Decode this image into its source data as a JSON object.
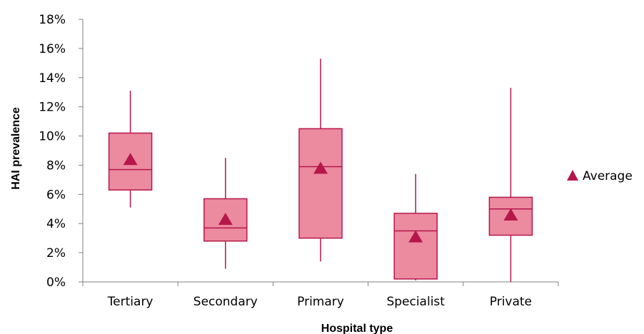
{
  "chart_data": {
    "type": "boxplot",
    "title": "",
    "xlabel": "Hospital type",
    "ylabel": "HAI prevalence",
    "ylim": [
      0,
      18
    ],
    "y_ticks": [
      0,
      2,
      4,
      6,
      8,
      10,
      12,
      14,
      16,
      18
    ],
    "y_tick_format": "percent",
    "categories": [
      "Tertiary",
      "Secondary",
      "Primary",
      "Specialist",
      "Private"
    ],
    "boxes": [
      {
        "category": "Tertiary",
        "min": 5.1,
        "q1": 6.3,
        "median": 7.7,
        "q3": 10.2,
        "max": 13.1,
        "average": 8.4
      },
      {
        "category": "Secondary",
        "min": 0.9,
        "q1": 2.8,
        "median": 3.7,
        "q3": 5.7,
        "max": 8.5,
        "average": 4.3
      },
      {
        "category": "Primary",
        "min": 1.4,
        "q1": 3.0,
        "median": 7.9,
        "q3": 10.5,
        "max": 15.3,
        "average": 7.8
      },
      {
        "category": "Specialist",
        "min": 0.1,
        "q1": 0.2,
        "median": 3.5,
        "q3": 4.7,
        "max": 7.4,
        "average": 3.1
      },
      {
        "category": "Private",
        "min": 0.0,
        "q1": 3.2,
        "median": 5.0,
        "q3": 5.8,
        "max": 13.3,
        "average": 4.6
      }
    ],
    "legend": {
      "entries": [
        "Average"
      ],
      "position": "right"
    },
    "grid": false,
    "colors": {
      "box_fill": "#ec8aa0",
      "box_stroke": "#b5174a",
      "marker": "#b5174a"
    }
  }
}
